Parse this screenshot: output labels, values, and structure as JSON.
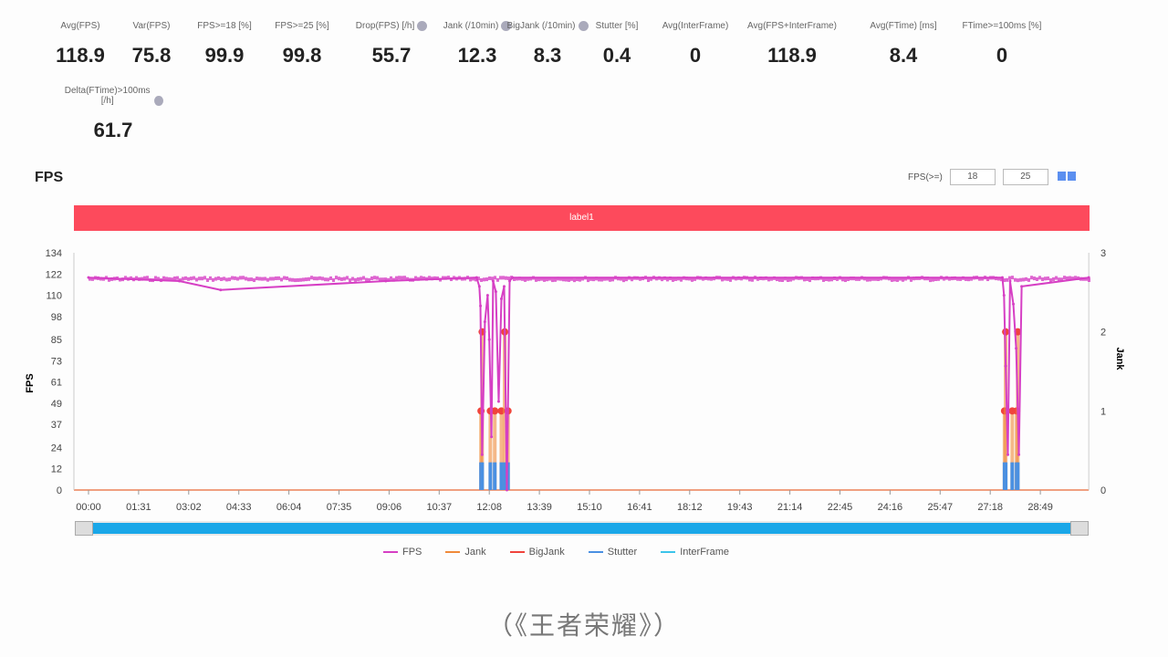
{
  "metrics": [
    {
      "label": "Avg(FPS)",
      "value": "118.9",
      "info": false
    },
    {
      "label": "Var(FPS)",
      "value": "75.8",
      "info": false
    },
    {
      "label": "FPS>=18 [%]",
      "value": "99.9",
      "info": false
    },
    {
      "label": "FPS>=25 [%]",
      "value": "99.8",
      "info": false
    },
    {
      "label": "Drop(FPS) [/h]",
      "value": "55.7",
      "info": true
    },
    {
      "label": "Jank (/10min)",
      "value": "12.3",
      "info": true
    },
    {
      "label": "BigJank (/10min)",
      "value": "8.3",
      "info": true
    },
    {
      "label": "Stutter [%]",
      "value": "0.4",
      "info": false
    },
    {
      "label": "Avg(InterFrame)",
      "value": "0",
      "info": false
    },
    {
      "label": "Avg(FPS+InterFrame)",
      "value": "118.9",
      "info": false
    },
    {
      "label": "Avg(FTime) [ms]",
      "value": "8.4",
      "info": false
    },
    {
      "label": "FTime>=100ms [%]",
      "value": "0",
      "info": false
    },
    {
      "label": "Delta(FTime)>100ms [/h]",
      "value": "61.7",
      "info": true
    }
  ],
  "section_title": "FPS",
  "threshold": {
    "label": "FPS(>=)",
    "values": [
      "18",
      "25"
    ]
  },
  "label_bar": "label1",
  "chart_data": {
    "type": "line",
    "ylabel": "FPS",
    "y2label": "Jank",
    "ylim": [
      0,
      134
    ],
    "y2lim": [
      0,
      3
    ],
    "yticks": [
      "0",
      "12",
      "24",
      "37",
      "49",
      "61",
      "73",
      "85",
      "98",
      "110",
      "122",
      "134"
    ],
    "y2ticks": [
      "0",
      "1",
      "2",
      "3"
    ],
    "xticks": [
      "00:00",
      "01:31",
      "03:02",
      "04:33",
      "06:04",
      "07:35",
      "09:06",
      "10:37",
      "12:08",
      "13:39",
      "15:10",
      "16:41",
      "18:12",
      "19:43",
      "21:14",
      "22:45",
      "24:16",
      "25:47",
      "27:18",
      "28:49"
    ],
    "xrange": [
      "00:00",
      "30:17"
    ],
    "fps_baseline": 120,
    "fps_points": [
      [
        "00:00",
        120
      ],
      [
        "02:45",
        118
      ],
      [
        "04:00",
        113
      ],
      [
        "09:00",
        118
      ],
      [
        "11:45",
        120
      ],
      [
        "11:50",
        115
      ],
      [
        "11:52",
        104
      ],
      [
        "11:55",
        20
      ],
      [
        "12:00",
        95
      ],
      [
        "12:05",
        110
      ],
      [
        "12:08",
        85
      ],
      [
        "12:12",
        30
      ],
      [
        "12:15",
        118
      ],
      [
        "12:20",
        112
      ],
      [
        "12:25",
        50
      ],
      [
        "12:30",
        108
      ],
      [
        "12:35",
        115
      ],
      [
        "12:40",
        0
      ],
      [
        "12:45",
        118
      ],
      [
        "12:50",
        120
      ],
      [
        "27:40",
        120
      ],
      [
        "27:43",
        110
      ],
      [
        "27:46",
        70
      ],
      [
        "27:50",
        20
      ],
      [
        "27:54",
        118
      ],
      [
        "28:00",
        105
      ],
      [
        "28:05",
        80
      ],
      [
        "28:10",
        20
      ],
      [
        "28:15",
        115
      ],
      [
        "30:17",
        120
      ]
    ],
    "series": [
      {
        "name": "FPS",
        "color": "#d63fc4"
      },
      {
        "name": "Jank",
        "color": "#f08a3a"
      },
      {
        "name": "BigJank",
        "color": "#f0443c"
      },
      {
        "name": "Stutter",
        "color": "#4a90e2"
      },
      {
        "name": "InterFrame",
        "color": "#3cc4ea"
      }
    ],
    "jank_events": [
      [
        "11:53",
        1
      ],
      [
        "11:55",
        2
      ],
      [
        "12:10",
        1
      ],
      [
        "12:18",
        1
      ],
      [
        "12:30",
        1
      ],
      [
        "12:36",
        2
      ],
      [
        "12:42",
        1
      ],
      [
        "27:44",
        1
      ],
      [
        "27:46",
        2
      ],
      [
        "27:58",
        1
      ],
      [
        "28:06",
        1
      ],
      [
        "28:08",
        2
      ]
    ]
  },
  "caption": "（《王者荣耀》）"
}
